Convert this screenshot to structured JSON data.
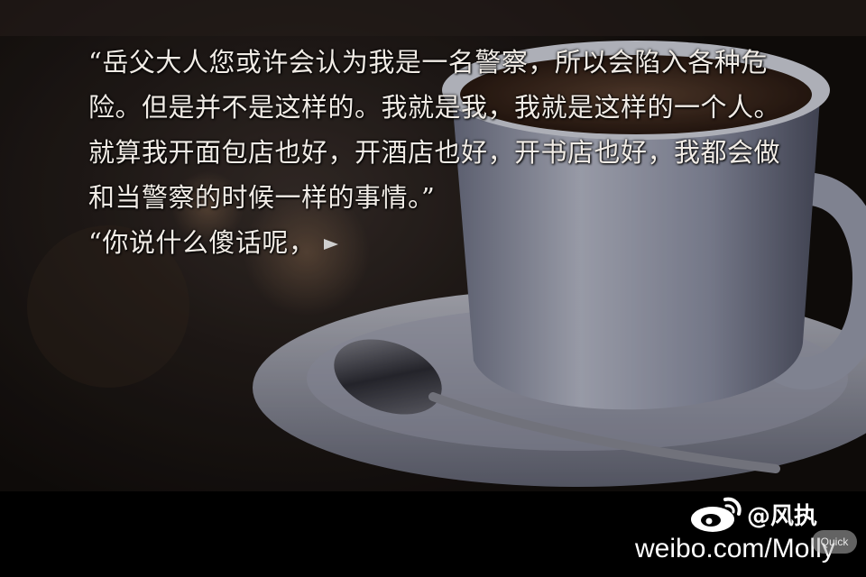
{
  "dialogue": {
    "paragraph_1": "“岳父大人您或许会认为我是一名警察，所以会陷入各种危险。但是并不是这样的。我就是我，我就是这样的一个人。就算我开面包店也好，开酒店也好，开书店也好，我都会做和当警察的时候一样的事情。”",
    "paragraph_2": "“你说什么傻话呢，"
  },
  "watermark": {
    "handle": "@风执",
    "url": "weibo.com/Molly",
    "quick_label": "Quick"
  },
  "colors": {
    "text": "#f1ece6",
    "bar": "#000000",
    "arrow": "#cfcfcf"
  },
  "icons": {
    "next": "next-arrow-icon",
    "logo": "weibo-logo-icon"
  }
}
